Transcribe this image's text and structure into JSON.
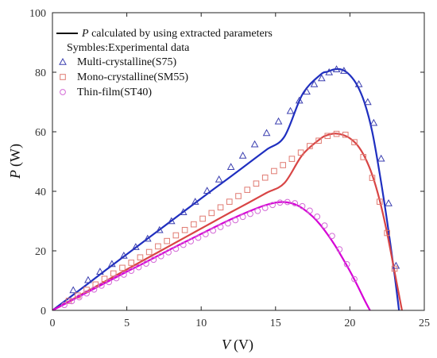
{
  "chart_data": {
    "type": "scatter",
    "title": "",
    "xlabel": {
      "var": "V",
      "unit": "(V)"
    },
    "ylabel": {
      "var": "P",
      "unit": "(W)"
    },
    "xlim": [
      0,
      25
    ],
    "ylim": [
      0,
      100
    ],
    "xticks": [
      "0",
      "5",
      "10",
      "15",
      "20",
      "25"
    ],
    "yticks": [
      "0",
      "20",
      "40",
      "60",
      "80",
      "100"
    ],
    "grid": false,
    "legend_position": "top-left",
    "legend": {
      "line_entry": {
        "var": "P",
        "rest": " calculated by using extracted parameters"
      },
      "heading": "Symbles:Experimental data"
    },
    "series": [
      {
        "name": "Multi-crystalline(S75)",
        "marker": "triangle",
        "marker_color": "#3b3fb0",
        "line_color": "#1f2fc0",
        "x": [
          0,
          1.2,
          2.4,
          3.6,
          4.8,
          6,
          7.2,
          8.4,
          9.6,
          10.8,
          12,
          13.2,
          14.4,
          15.6,
          16.8,
          18,
          18.5,
          19,
          19.5,
          20,
          20.5,
          21,
          21.5,
          22,
          22.5,
          23,
          23.3
        ],
        "y": [
          0,
          4.5,
          9.0,
          13.6,
          18.1,
          22.6,
          27.1,
          31.6,
          36.1,
          40.6,
          45.0,
          49.5,
          54.0,
          58.4,
          72.5,
          79.1,
          80.2,
          81.0,
          80.8,
          79.0,
          75.5,
          69.5,
          60.0,
          46.0,
          30.0,
          12.0,
          0
        ],
        "markers_x": [
          1.4,
          2.4,
          3.2,
          4.0,
          4.8,
          5.6,
          6.4,
          7.2,
          8.0,
          8.8,
          9.6,
          10.4,
          11.2,
          12.0,
          12.8,
          13.6,
          14.4,
          15.2,
          16.0,
          16.6,
          17.1,
          17.6,
          18.1,
          18.6,
          19.1,
          19.6,
          20.6,
          21.2,
          21.6,
          22.1,
          22.6,
          23.1
        ],
        "markers_y": [
          6.8,
          10.2,
          13.0,
          15.6,
          18.4,
          21.3,
          24.1,
          27.0,
          30.0,
          33.0,
          36.5,
          40.2,
          44.0,
          48.2,
          52.0,
          55.8,
          59.6,
          63.5,
          67.0,
          70.5,
          73.5,
          76.0,
          78.0,
          80.0,
          81.0,
          80.5,
          76.0,
          70.0,
          63.0,
          51.0,
          36.0,
          15.0
        ]
      },
      {
        "name": "Mono-crystalline(SM55)",
        "marker": "square",
        "marker_color": "#e07b72",
        "line_color": "#d84545",
        "x": [
          0,
          1.2,
          2.4,
          3.6,
          4.8,
          6,
          7.2,
          8.4,
          9.6,
          10.8,
          12,
          13.2,
          14.4,
          15.6,
          16.8,
          18,
          18.5,
          19,
          19.5,
          20,
          20.5,
          21,
          21.5,
          22,
          22.5,
          23,
          23.5
        ],
        "y": [
          0,
          3.3,
          6.6,
          9.9,
          13.2,
          16.5,
          19.8,
          23.1,
          26.4,
          29.7,
          33.0,
          36.2,
          39.5,
          42.8,
          52.2,
          57.6,
          58.9,
          59.4,
          59.0,
          57.8,
          55.5,
          51.5,
          45.5,
          37.0,
          26.0,
          13.0,
          0
        ],
        "markers_x": [
          1.1,
          1.7,
          2.3,
          2.9,
          3.5,
          4.1,
          4.7,
          5.3,
          5.9,
          6.5,
          7.1,
          7.7,
          8.3,
          8.9,
          9.5,
          10.1,
          10.7,
          11.3,
          11.9,
          12.5,
          13.1,
          13.7,
          14.3,
          14.9,
          15.5,
          16.1,
          16.7,
          17.3,
          17.9,
          18.5,
          19.1,
          19.7,
          20.3,
          20.9,
          21.5,
          22.0,
          22.5,
          23.0
        ],
        "markers_y": [
          3.2,
          5.0,
          6.9,
          8.7,
          10.6,
          12.4,
          14.3,
          16.0,
          17.8,
          19.6,
          21.5,
          23.3,
          25.2,
          27.0,
          28.9,
          30.8,
          32.7,
          34.6,
          36.5,
          38.4,
          40.5,
          42.6,
          44.6,
          46.8,
          48.8,
          50.9,
          53.0,
          55.2,
          57.0,
          58.6,
          59.3,
          59.0,
          56.5,
          51.5,
          44.5,
          36.5,
          26.0,
          14.0
        ]
      },
      {
        "name": "Thin-film(ST40)",
        "marker": "circle",
        "marker_color": "#d36ad6",
        "line_color": "#d600d6",
        "x": [
          0,
          1.0,
          2.0,
          3.0,
          4.0,
          5.0,
          6.0,
          7.0,
          8.0,
          9.0,
          10.0,
          11.0,
          12.0,
          13.0,
          14.0,
          14.5,
          15.0,
          15.5,
          16.0,
          16.5,
          17.0,
          17.5,
          18.0,
          18.5,
          19.0,
          19.5,
          20.0,
          20.5,
          21.0,
          21.35
        ],
        "y": [
          0,
          2.6,
          5.2,
          7.8,
          10.4,
          13.0,
          15.5,
          18.1,
          20.7,
          23.2,
          25.7,
          28.2,
          30.6,
          32.8,
          34.8,
          35.6,
          36.2,
          36.4,
          36.1,
          35.2,
          33.6,
          31.5,
          28.8,
          25.5,
          21.8,
          17.6,
          13.2,
          8.4,
          3.3,
          0
        ],
        "markers_x": [
          0.8,
          1.3,
          1.8,
          2.3,
          2.8,
          3.3,
          3.8,
          4.3,
          4.8,
          5.3,
          5.8,
          6.3,
          6.8,
          7.3,
          7.8,
          8.3,
          8.8,
          9.3,
          9.8,
          10.3,
          10.8,
          11.3,
          11.8,
          12.3,
          12.8,
          13.3,
          13.8,
          14.3,
          14.8,
          15.3,
          15.8,
          16.3,
          16.8,
          17.3,
          17.8,
          18.3,
          18.8,
          19.3,
          19.8,
          20.3
        ],
        "markers_y": [
          1.8,
          3.1,
          4.4,
          5.7,
          7.0,
          8.3,
          9.5,
          10.8,
          12.0,
          13.3,
          14.5,
          15.7,
          17.0,
          18.2,
          19.5,
          20.7,
          22.0,
          23.2,
          24.4,
          25.6,
          26.8,
          28.0,
          29.2,
          30.3,
          31.4,
          32.4,
          33.4,
          34.4,
          35.4,
          36.2,
          36.4,
          36.0,
          35.0,
          33.5,
          31.5,
          28.5,
          25.0,
          20.5,
          15.5,
          10.5
        ]
      }
    ]
  }
}
